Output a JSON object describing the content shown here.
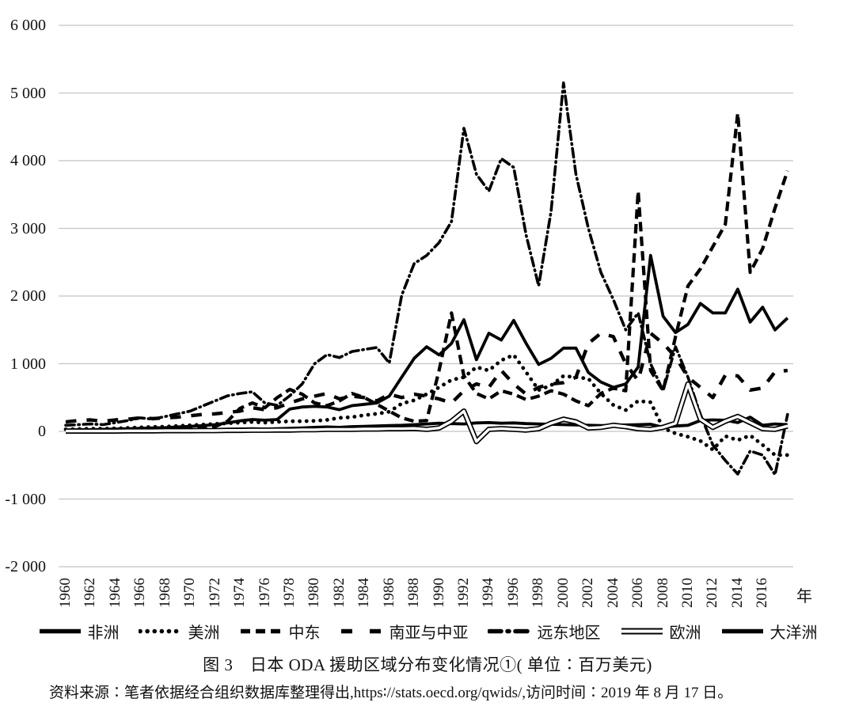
{
  "figure": {
    "caption": "图 3　日本 ODA 援助区域分布变化情况①( 单位∶百万美元)",
    "source_note": "资料来源∶笔者依据经合组织数据库整理得出,https∶//stats.oecd.org/qwids/,访问时间∶2019 年 8 月 17 日。"
  },
  "colors": {
    "line": "#000000",
    "grid": "#c4c4c4",
    "background": "#ffffff"
  },
  "chart_data": {
    "type": "line",
    "title": "图 3 日本 ODA 援助区域分布变化情况 (单位: 百万美元)",
    "unit": "百万美元",
    "x_label": "年",
    "x_range": [
      1960,
      2018
    ],
    "x_step": 1,
    "ylim": [
      -2000,
      6000
    ],
    "grid": "horizontal",
    "legend_position": "bottom",
    "y_ticks": [
      {
        "label": "6 000",
        "value": 6000
      },
      {
        "label": "5 000",
        "value": 5000
      },
      {
        "label": "4 000",
        "value": 4000
      },
      {
        "label": "3 000",
        "value": 3000
      },
      {
        "label": "2 000",
        "value": 2000
      },
      {
        "label": "1 000",
        "value": 1000
      },
      {
        "label": "0",
        "value": 0
      },
      {
        "label": "-1 000",
        "value": -1000
      },
      {
        "label": "-2 000",
        "value": -2000
      }
    ],
    "x_tick_labels": [
      "1960",
      "1962",
      "1964",
      "1966",
      "1968",
      "1970",
      "1972",
      "1974",
      "1976",
      "1978",
      "1980",
      "1982",
      "1984",
      "1986",
      "1988",
      "1990",
      "1992",
      "1994",
      "1996",
      "1998",
      "2000",
      "2002",
      "2004",
      "2006",
      "2008",
      "2010",
      "2012",
      "2014",
      "2016"
    ],
    "series": [
      {
        "key": "africa",
        "label": "非洲",
        "style": "solid",
        "color": "#000000",
        "values": [
          20,
          25,
          25,
          30,
          35,
          40,
          45,
          50,
          55,
          65,
          75,
          85,
          100,
          125,
          155,
          175,
          165,
          175,
          330,
          360,
          370,
          360,
          320,
          380,
          400,
          420,
          520,
          800,
          1080,
          1250,
          1130,
          1300,
          1650,
          1060,
          1450,
          1350,
          1640,
          1300,
          990,
          1080,
          1230,
          1230,
          870,
          730,
          650,
          700,
          950,
          2600,
          1700,
          1460,
          1580,
          1890,
          1750,
          1750,
          2100,
          1615,
          1835,
          1500,
          1675
        ]
      },
      {
        "key": "americas",
        "label": "美洲",
        "style": "dotted",
        "color": "#000000",
        "values": [
          30,
          35,
          40,
          40,
          45,
          50,
          60,
          65,
          70,
          80,
          90,
          100,
          110,
          120,
          130,
          140,
          130,
          140,
          150,
          150,
          155,
          170,
          200,
          210,
          240,
          260,
          290,
          410,
          460,
          550,
          650,
          760,
          800,
          950,
          900,
          1050,
          1130,
          875,
          610,
          680,
          820,
          800,
          780,
          560,
          390,
          315,
          450,
          430,
          50,
          -30,
          -80,
          -140,
          -270,
          -70,
          -130,
          -60,
          -200,
          -350,
          -350
        ]
      },
      {
        "key": "middle-east",
        "label": "中东",
        "style": "dashed",
        "color": "#000000",
        "values": [
          10,
          10,
          15,
          15,
          20,
          25,
          30,
          35,
          40,
          45,
          50,
          60,
          70,
          150,
          340,
          420,
          350,
          500,
          620,
          550,
          420,
          380,
          450,
          560,
          500,
          400,
          300,
          200,
          150,
          160,
          900,
          1750,
          820,
          560,
          480,
          600,
          550,
          470,
          520,
          600,
          550,
          450,
          380,
          560,
          640,
          600,
          3550,
          900,
          600,
          1400,
          2150,
          2400,
          2730,
          3060,
          4700,
          2350,
          2700,
          3300,
          3850
        ]
      },
      {
        "key": "south-central-asia",
        "label": "南亚与中亚",
        "style": "longdash",
        "color": "#000000",
        "values": [
          140,
          160,
          170,
          150,
          170,
          180,
          200,
          190,
          200,
          210,
          230,
          250,
          260,
          280,
          300,
          350,
          320,
          350,
          420,
          480,
          520,
          560,
          480,
          520,
          500,
          450,
          550,
          500,
          550,
          520,
          480,
          420,
          600,
          700,
          650,
          900,
          700,
          550,
          650,
          700,
          720,
          800,
          1300,
          1450,
          1400,
          1000,
          750,
          1450,
          1300,
          1100,
          800,
          650,
          500,
          830,
          820,
          610,
          640,
          880,
          900
        ]
      },
      {
        "key": "far-east",
        "label": "远东地区",
        "style": "dashdot",
        "color": "#000000",
        "values": [
          90,
          100,
          110,
          100,
          130,
          160,
          200,
          180,
          220,
          260,
          300,
          375,
          450,
          525,
          560,
          585,
          420,
          385,
          525,
          700,
          1000,
          1135,
          1090,
          1180,
          1210,
          1240,
          1010,
          2010,
          2480,
          2600,
          2790,
          3100,
          4480,
          3800,
          3550,
          4030,
          3900,
          2900,
          2150,
          3250,
          5150,
          3800,
          3000,
          2350,
          1950,
          1500,
          1750,
          1000,
          600,
          1250,
          800,
          250,
          -200,
          -430,
          -630,
          -290,
          -350,
          -640,
          250
        ]
      },
      {
        "key": "europe",
        "label": "欧洲",
        "style": "outline",
        "color": "#000000",
        "values": [
          5,
          5,
          5,
          5,
          5,
          8,
          8,
          8,
          10,
          10,
          10,
          12,
          12,
          15,
          15,
          18,
          18,
          20,
          20,
          25,
          25,
          30,
          30,
          30,
          35,
          35,
          40,
          40,
          45,
          30,
          50,
          150,
          300,
          -150,
          30,
          40,
          30,
          20,
          40,
          120,
          180,
          140,
          50,
          60,
          90,
          70,
          40,
          30,
          60,
          120,
          700,
          180,
          60,
          150,
          220,
          130,
          40,
          30,
          80
        ]
      },
      {
        "key": "oceania",
        "label": "大洋洲",
        "style": "solid",
        "color": "#000000",
        "values": [
          5,
          5,
          5,
          8,
          8,
          10,
          10,
          12,
          12,
          15,
          18,
          20,
          25,
          30,
          35,
          40,
          35,
          40,
          45,
          50,
          60,
          65,
          60,
          70,
          75,
          80,
          85,
          90,
          100,
          110,
          120,
          115,
          110,
          125,
          130,
          120,
          125,
          115,
          110,
          105,
          100,
          95,
          90,
          85,
          90,
          95,
          100,
          105,
          60,
          80,
          90,
          160,
          170,
          165,
          130,
          210,
          90,
          110,
          100
        ]
      }
    ]
  }
}
